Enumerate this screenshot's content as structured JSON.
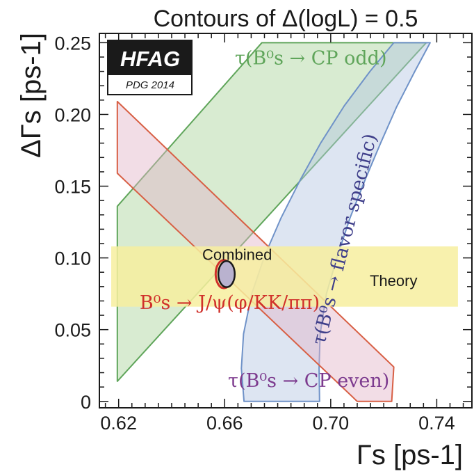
{
  "chart_data": {
    "type": "contour",
    "title": "Contours of Δ(logL) = 0.5",
    "xlabel": "Γs [ps-1]",
    "ylabel": "ΔΓs [ps-1]",
    "xlim": [
      0.613,
      0.753
    ],
    "ylim": [
      -0.004,
      0.256
    ],
    "xticks": [
      0.62,
      0.66,
      0.7,
      0.74
    ],
    "xtick_labels": [
      "0.62",
      "0.66",
      "0.70",
      "0.74"
    ],
    "yticks": [
      0,
      0.05,
      0.1,
      0.15,
      0.2,
      0.25
    ],
    "ytick_labels": [
      "0",
      "0.05",
      "0.10",
      "0.15",
      "0.20",
      "0.25"
    ],
    "logo": {
      "main": "HFAG",
      "sub": "PDG 2014"
    },
    "series": [
      {
        "name": "τ(B⁰s → CP odd)",
        "color": "#5fa55a",
        "fill": "#a8d39a",
        "polygon": [
          [
            0.6195,
            0.014
          ],
          [
            0.6195,
            0.136
          ],
          [
            0.674,
            0.25
          ],
          [
            0.736,
            0.25
          ],
          [
            0.6195,
            0.014
          ]
        ]
      },
      {
        "name": "τ(B⁰s → flavor specific)",
        "color": "#6f92c8",
        "fill": "#b4c6e3",
        "polygon": [
          [
            0.6673,
            0.0
          ],
          [
            0.6663,
            0.023
          ],
          [
            0.6671,
            0.047
          ],
          [
            0.6702,
            0.075
          ],
          [
            0.6752,
            0.102
          ],
          [
            0.6813,
            0.128
          ],
          [
            0.6887,
            0.155
          ],
          [
            0.6962,
            0.18
          ],
          [
            0.7051,
            0.206
          ],
          [
            0.7148,
            0.23
          ],
          [
            0.7238,
            0.25
          ],
          [
            0.7375,
            0.25
          ],
          [
            0.7317,
            0.23
          ],
          [
            0.7248,
            0.205
          ],
          [
            0.7188,
            0.18
          ],
          [
            0.7131,
            0.155
          ],
          [
            0.7073,
            0.128
          ],
          [
            0.7023,
            0.1
          ],
          [
            0.6984,
            0.075
          ],
          [
            0.696,
            0.047
          ],
          [
            0.6956,
            0.023
          ],
          [
            0.6958,
            0.0
          ]
        ]
      },
      {
        "name": "τ(B⁰s → CP even)",
        "color": "#d85f44",
        "fill": "#e3b4c8",
        "polygon": [
          [
            0.6195,
            0.209
          ],
          [
            0.6195,
            0.159
          ],
          [
            0.71,
            0.0
          ],
          [
            0.723,
            0.0
          ],
          [
            0.7238,
            0.024
          ],
          [
            0.6195,
            0.209
          ]
        ]
      },
      {
        "name": "Theory",
        "color": "#f5e88a",
        "fill": "#f7ee9f",
        "rect": {
          "x": [
            0.6172,
            0.748
          ],
          "y": [
            0.066,
            0.108
          ]
        }
      },
      {
        "name": "B⁰s → J/ψ(φ/KK/ππ)",
        "color": "#d0302a",
        "ellipse": {
          "cx": 0.6597,
          "cy": 0.0887,
          "rx": 0.0031,
          "ry": 0.0098
        }
      },
      {
        "name": "Combined",
        "color": "#1a1a1a",
        "fill": "#b9b2cf",
        "ellipse": {
          "cx": 0.6607,
          "cy": 0.0887,
          "rx": 0.0031,
          "ry": 0.0091
        }
      }
    ],
    "annotations": [
      {
        "text": "τ(B⁰s → CP odd)",
        "color": "#5fa55a",
        "at": [
          0.6925,
          0.235
        ]
      },
      {
        "text": "τ(B⁰s → flavor specific)",
        "color": "#3f3f8a",
        "at": [
          0.7075,
          0.112
        ],
        "rotation": -76
      },
      {
        "text": "τ(B⁰s → CP even)",
        "color": "#7c3a8e",
        "at": [
          0.6917,
          0.01
        ]
      },
      {
        "text": "Combined",
        "color": "#1a1a1a",
        "at": [
          0.6647,
          0.0985
        ]
      },
      {
        "text": "Theory",
        "color": "#1a1a1a",
        "at": [
          0.7237,
          0.0805
        ]
      },
      {
        "text": "B⁰s → J/ψ(φ/KK/ππ)",
        "color": "#d0302a",
        "at": [
          0.6619,
          0.0645
        ]
      }
    ]
  }
}
